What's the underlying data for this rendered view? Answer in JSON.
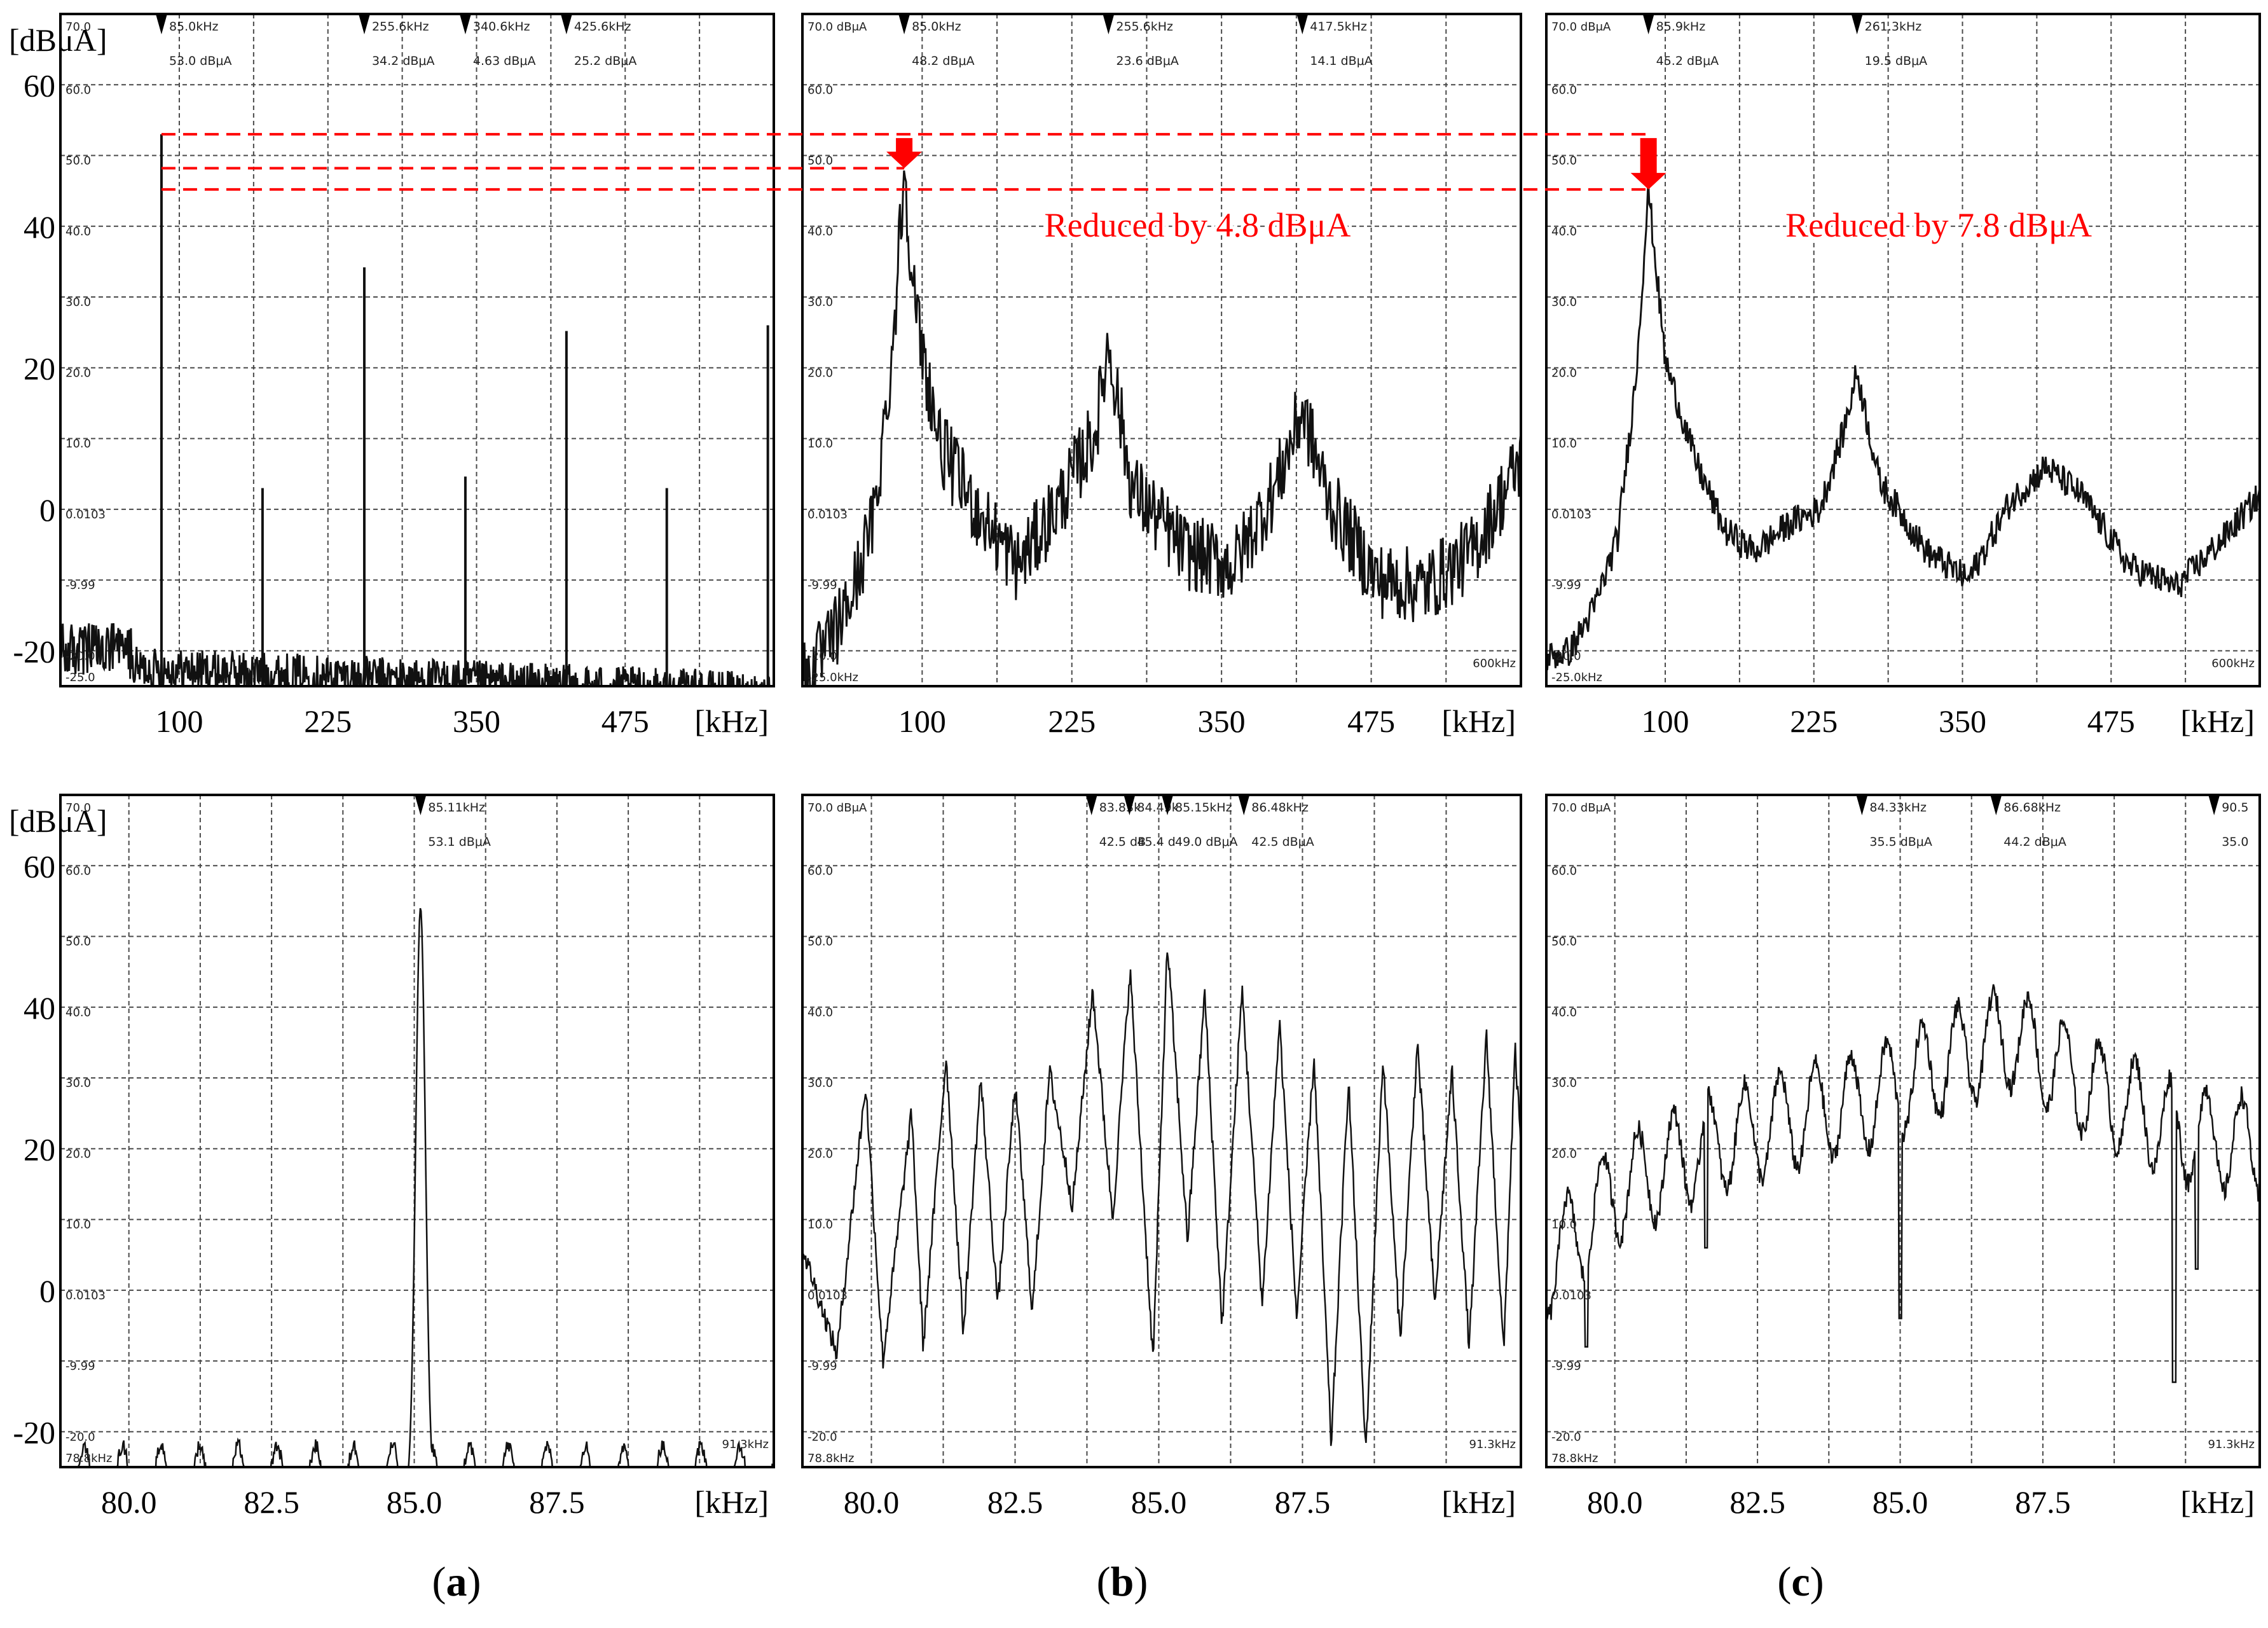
{
  "figure": {
    "unit_label": "[dBμA]",
    "x_unit": "[kHz]",
    "captions": [
      "a",
      "b",
      "c"
    ],
    "colors": {
      "trace": "#111111",
      "grid": "#4a4a4a",
      "annotation": "#ff0000",
      "frame": "#000000"
    }
  },
  "chart_data": [
    {
      "id": "a-wide",
      "type": "line",
      "panel": "a",
      "ylabel": "[dBμA]",
      "xlabel": "[kHz]",
      "xlim": [
        0,
        600
      ],
      "ylim": [
        -25,
        70
      ],
      "xticks": [
        100,
        225,
        350,
        475
      ],
      "yticks": [
        60,
        40,
        20,
        0,
        -20
      ],
      "screen_labels": [
        "70.0",
        "60.0",
        "50.0",
        "40.0",
        "30.0",
        "20.0",
        "10.0",
        "0.0103",
        "-9.99",
        "-20.0",
        "-25.0"
      ],
      "markers": [
        {
          "x": 85.0,
          "y": 53.0,
          "freq": "85.0kHz",
          "level": "53.0 dBμA"
        },
        {
          "x": 255.6,
          "y": 34.2,
          "freq": "255.6kHz",
          "level": "34.2 dBμA"
        },
        {
          "x": 340.6,
          "y": 4.63,
          "freq": "340.6kHz",
          "level": "4.63 dBμA"
        },
        {
          "x": 425.6,
          "y": 25.2,
          "freq": "425.6kHz",
          "level": "25.2 dBμA"
        }
      ],
      "series": [
        {
          "style": "spikes",
          "peaks": [
            [
              85,
              53.0
            ],
            [
              170,
              3.0
            ],
            [
              255.6,
              34.2
            ],
            [
              340.6,
              4.63
            ],
            [
              425.6,
              25.2
            ],
            [
              510,
              3.0
            ],
            [
              595,
              26.0
            ]
          ],
          "floor": -26.5
        }
      ]
    },
    {
      "id": "b-wide",
      "type": "line",
      "panel": "b",
      "xlabel": "[kHz]",
      "xlim": [
        0,
        600
      ],
      "ylim": [
        -25,
        70
      ],
      "xticks": [
        100,
        225,
        350,
        475
      ],
      "screen_labels": [
        "70.0 dBμA",
        "60.0",
        "50.0",
        "40.0",
        "30.0",
        "20.0",
        "10.0",
        "0.0103",
        "-9.99",
        "-20.0",
        "-25.0kHz",
        "600kHz"
      ],
      "markers": [
        {
          "x": 85.0,
          "y": 48.2,
          "freq": "85.0kHz",
          "level": "48.2 dBμA"
        },
        {
          "x": 255.6,
          "y": 23.6,
          "freq": "255.6kHz",
          "level": "23.6 dBμA"
        },
        {
          "x": 417.5,
          "y": 14.1,
          "freq": "417.5kHz",
          "level": "14.1 dBμA"
        }
      ],
      "annotation": "Reduced by 4.8 dBμA",
      "series": [
        {
          "style": "noisy",
          "envelope": [
            [
              0,
              -24
            ],
            [
              20,
              -20
            ],
            [
              40,
              -13
            ],
            [
              60,
              -1
            ],
            [
              75,
              22
            ],
            [
              85,
              48.2
            ],
            [
              95,
              27
            ],
            [
              115,
              9
            ],
            [
              145,
              0
            ],
            [
              180,
              -8
            ],
            [
              215,
              1
            ],
            [
              245,
              11
            ],
            [
              255.6,
              23.6
            ],
            [
              275,
              3
            ],
            [
              320,
              -6
            ],
            [
              360,
              -8
            ],
            [
              395,
              3
            ],
            [
              417.5,
              14.1
            ],
            [
              440,
              1
            ],
            [
              480,
              -10
            ],
            [
              520,
              -11
            ],
            [
              560,
              -6
            ],
            [
              600,
              7
            ]
          ],
          "noise": 5.5
        }
      ]
    },
    {
      "id": "c-wide",
      "type": "line",
      "panel": "c",
      "xlabel": "[kHz]",
      "xlim": [
        0,
        600
      ],
      "ylim": [
        -25,
        70
      ],
      "xticks": [
        100,
        225,
        350,
        475
      ],
      "screen_labels": [
        "70.0 dBμA",
        "60.0",
        "50.0",
        "40.0",
        "30.0",
        "20.0",
        "10.0",
        "0.0103",
        "-9.99",
        "-20.0",
        "-25.0kHz",
        "600kHz"
      ],
      "markers": [
        {
          "x": 85.9,
          "y": 45.2,
          "freq": "85.9kHz",
          "level": "45.2 dBμA"
        },
        {
          "x": 261.3,
          "y": 19.5,
          "freq": "261.3kHz",
          "level": "19.5 dBμA"
        }
      ],
      "annotation": "Reduced by 7.8 dBμA",
      "series": [
        {
          "style": "noisy",
          "envelope": [
            [
              0,
              -21
            ],
            [
              20,
              -20
            ],
            [
              40,
              -14
            ],
            [
              60,
              -4
            ],
            [
              75,
              18
            ],
            [
              85.9,
              45.2
            ],
            [
              100,
              21
            ],
            [
              125,
              7
            ],
            [
              150,
              -3
            ],
            [
              175,
              -6
            ],
            [
              205,
              -2
            ],
            [
              230,
              0
            ],
            [
              250,
              11
            ],
            [
              261.3,
              19.5
            ],
            [
              280,
              4
            ],
            [
              320,
              -6
            ],
            [
              355,
              -10
            ],
            [
              390,
              1
            ],
            [
              420,
              6
            ],
            [
              450,
              2
            ],
            [
              490,
              -8
            ],
            [
              530,
              -11
            ],
            [
              570,
              -4
            ],
            [
              600,
              2
            ]
          ],
          "noise": 2.2
        }
      ]
    },
    {
      "id": "a-zoom",
      "type": "line",
      "panel": "a",
      "ylabel": "[dBμA]",
      "xlabel": "[kHz]",
      "xlim": [
        78.8,
        91.3
      ],
      "ylim": [
        -25,
        70
      ],
      "xticks": [
        80.0,
        82.5,
        85.0,
        87.5
      ],
      "yticks": [
        60,
        40,
        20,
        0,
        -20
      ],
      "screen_labels": [
        "70.0",
        "60.0",
        "50.0",
        "40.0",
        "30.0",
        "20.0",
        "10.0",
        "0.0103",
        "-9.99",
        "-20.0",
        "78.8kHz",
        "91.3kHz"
      ],
      "markers": [
        {
          "x": 85.11,
          "y": 53.1,
          "freq": "85.11kHz",
          "level": "53.1 dBμA"
        }
      ],
      "series": [
        {
          "style": "single-peak",
          "peak": [
            85.11,
            53.1
          ],
          "floor": -25
        }
      ]
    },
    {
      "id": "b-zoom",
      "type": "line",
      "panel": "b",
      "xlabel": "[kHz]",
      "xlim": [
        78.8,
        91.3
      ],
      "ylim": [
        -25,
        70
      ],
      "xticks": [
        80.0,
        82.5,
        85.0,
        87.5
      ],
      "screen_labels": [
        "70.0 dBμA",
        "60.0",
        "50.0",
        "40.0",
        "30.0",
        "20.0",
        "10.0",
        "0.0103",
        "-9.99",
        "-20.0",
        "78.8kHz",
        "91.3kHz"
      ],
      "markers": [
        {
          "x": 83.83,
          "y": 42.5,
          "freq": "83.83k",
          "level": "42.5 dB"
        },
        {
          "x": 84.49,
          "y": 45.4,
          "freq": "84.49k",
          "level": "45.4 d"
        },
        {
          "x": 85.15,
          "y": 49.0,
          "freq": "85.15kHz",
          "level": "49.0 dBμA"
        },
        {
          "x": 86.48,
          "y": 42.5,
          "freq": "86.48kHz",
          "level": "42.5 dBμA"
        }
      ],
      "series": [
        {
          "style": "comb",
          "peaks": [
            [
              79.9,
              29
            ],
            [
              80.7,
              25
            ],
            [
              81.3,
              33
            ],
            [
              81.9,
              30
            ],
            [
              82.5,
              29
            ],
            [
              83.1,
              31
            ],
            [
              83.85,
              42.5
            ],
            [
              84.5,
              45.4
            ],
            [
              85.15,
              49
            ],
            [
              85.8,
              42
            ],
            [
              86.45,
              42.5
            ],
            [
              87.1,
              38
            ],
            [
              87.7,
              33
            ],
            [
              88.3,
              30
            ],
            [
              88.9,
              33
            ],
            [
              89.5,
              35
            ],
            [
              90.1,
              31
            ],
            [
              90.7,
              36
            ],
            [
              91.2,
              34
            ]
          ],
          "dips": [
            [
              79.4,
              -9
            ],
            [
              80.2,
              -10
            ],
            [
              80.9,
              -8
            ],
            [
              81.6,
              -6
            ],
            [
              82.2,
              -2
            ],
            [
              82.8,
              -3
            ],
            [
              83.5,
              12
            ],
            [
              84.2,
              10
            ],
            [
              84.9,
              -10
            ],
            [
              85.5,
              7
            ],
            [
              86.1,
              -5
            ],
            [
              86.8,
              -2
            ],
            [
              87.4,
              -4
            ],
            [
              88.0,
              -22
            ],
            [
              88.6,
              -23
            ],
            [
              89.2,
              -7
            ],
            [
              89.8,
              -2
            ],
            [
              90.4,
              -8
            ],
            [
              91.0,
              -9
            ]
          ]
        }
      ]
    },
    {
      "id": "c-zoom",
      "type": "line",
      "panel": "c",
      "xlabel": "[kHz]",
      "xlim": [
        78.8,
        91.3
      ],
      "ylim": [
        -25,
        70
      ],
      "xticks": [
        80.0,
        82.5,
        85.0,
        87.5
      ],
      "screen_labels": [
        "70.0 dBμA",
        "60.0",
        "50.0",
        "40.0",
        "30.0",
        "20.0",
        "10.0",
        "0.0103",
        "-9.99",
        "-20.0",
        "78.8kHz",
        "91.3kHz"
      ],
      "markers": [
        {
          "x": 84.33,
          "y": 35.5,
          "freq": "84.33kHz",
          "level": "35.5 dBμA"
        },
        {
          "x": 86.68,
          "y": 44.2,
          "freq": "86.68kHz",
          "level": "44.2 dBμA"
        },
        {
          "x": 90.5,
          "y": 35.0,
          "freq": "90.5",
          "level": "35.0"
        }
      ],
      "series": [
        {
          "style": "rolling",
          "trend": [
            [
              78.8,
              3
            ],
            [
              80,
              14
            ],
            [
              81.5,
              20
            ],
            [
              83,
              24
            ],
            [
              84.5,
              27
            ],
            [
              86,
              33
            ],
            [
              87,
              36
            ],
            [
              88,
              30
            ],
            [
              89,
              26
            ],
            [
              90,
              22
            ],
            [
              91.3,
              20
            ]
          ],
          "ripple": 7,
          "dips": [
            [
              79.5,
              -8
            ],
            [
              81.6,
              6
            ],
            [
              85.0,
              -4
            ],
            [
              89.8,
              -13
            ],
            [
              90.2,
              3
            ]
          ]
        }
      ]
    }
  ]
}
